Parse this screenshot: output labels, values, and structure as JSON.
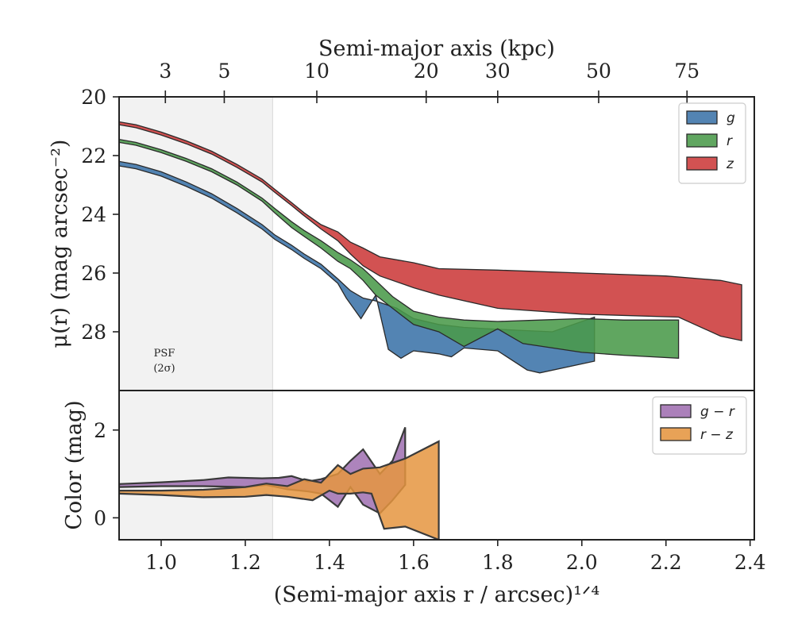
{
  "chart_data": [
    {
      "panel": "surface-brightness",
      "type": "area",
      "top_axis": {
        "label": "Semi-major axis (kpc)",
        "ticks": [
          3,
          5,
          10,
          20,
          30,
          50,
          75
        ],
        "tick_labels": [
          "3",
          "5",
          "10",
          "20",
          "30",
          "50",
          "75"
        ],
        "tick_x_positions": [
          1.01,
          1.15,
          1.37,
          1.63,
          1.8,
          2.04,
          2.25
        ]
      },
      "xlim": [
        0.9,
        2.41
      ],
      "ylim": [
        30,
        20
      ],
      "y_ticks": [
        20,
        22,
        24,
        26,
        28
      ],
      "y_tick_labels": [
        "20",
        "22",
        "24",
        "26",
        "28"
      ],
      "ylabel": "μ(r) (mag arcsec⁻²)",
      "psf_band": {
        "x_range": [
          0.9,
          1.265
        ],
        "label_line1": "PSF",
        "label_line2": "(2σ)"
      },
      "legend": {
        "position": "upper right",
        "entries": [
          "g",
          "r",
          "z"
        ]
      },
      "series": [
        {
          "name": "g",
          "color": "#3b73a8",
          "upper": [
            [
              0.9,
              22.2
            ],
            [
              0.94,
              22.3
            ],
            [
              1.0,
              22.55
            ],
            [
              1.06,
              22.9
            ],
            [
              1.12,
              23.3
            ],
            [
              1.18,
              23.8
            ],
            [
              1.24,
              24.35
            ],
            [
              1.27,
              24.7
            ],
            [
              1.31,
              25.05
            ],
            [
              1.34,
              25.35
            ],
            [
              1.38,
              25.7
            ],
            [
              1.42,
              26.2
            ],
            [
              1.45,
              26.6
            ],
            [
              1.48,
              26.85
            ],
            [
              1.51,
              26.95
            ],
            [
              1.56,
              27.2
            ],
            [
              1.6,
              27.55
            ],
            [
              1.66,
              27.75
            ],
            [
              1.72,
              27.85
            ],
            [
              1.78,
              27.9
            ],
            [
              1.85,
              27.95
            ],
            [
              1.93,
              28.0
            ],
            [
              2.03,
              27.5
            ]
          ],
          "lower": [
            [
              0.9,
              22.35
            ],
            [
              0.94,
              22.45
            ],
            [
              1.0,
              22.7
            ],
            [
              1.06,
              23.05
            ],
            [
              1.12,
              23.45
            ],
            [
              1.18,
              23.95
            ],
            [
              1.24,
              24.5
            ],
            [
              1.27,
              24.85
            ],
            [
              1.31,
              25.2
            ],
            [
              1.34,
              25.5
            ],
            [
              1.38,
              25.85
            ],
            [
              1.42,
              26.35
            ],
            [
              1.44,
              26.85
            ],
            [
              1.475,
              27.55
            ],
            [
              1.51,
              26.75
            ],
            [
              1.54,
              28.6
            ],
            [
              1.57,
              28.9
            ],
            [
              1.6,
              28.65
            ],
            [
              1.66,
              28.75
            ],
            [
              1.69,
              28.85
            ],
            [
              1.72,
              28.55
            ],
            [
              1.8,
              28.65
            ],
            [
              1.87,
              29.3
            ],
            [
              1.9,
              29.4
            ],
            [
              2.03,
              29.0
            ]
          ]
        },
        {
          "name": "r",
          "color": "#4a9a4a",
          "upper": [
            [
              0.9,
              21.45
            ],
            [
              0.94,
              21.55
            ],
            [
              1.0,
              21.8
            ],
            [
              1.06,
              22.1
            ],
            [
              1.12,
              22.45
            ],
            [
              1.18,
              22.9
            ],
            [
              1.24,
              23.45
            ],
            [
              1.27,
              23.8
            ],
            [
              1.31,
              24.25
            ],
            [
              1.34,
              24.55
            ],
            [
              1.38,
              24.9
            ],
            [
              1.42,
              25.3
            ],
            [
              1.45,
              25.55
            ],
            [
              1.48,
              25.85
            ],
            [
              1.51,
              26.25
            ],
            [
              1.55,
              26.8
            ],
            [
              1.6,
              27.3
            ],
            [
              1.66,
              27.5
            ],
            [
              1.72,
              27.6
            ],
            [
              1.8,
              27.65
            ],
            [
              1.9,
              27.6
            ],
            [
              2.0,
              27.55
            ],
            [
              2.1,
              27.6
            ],
            [
              2.23,
              27.6
            ]
          ],
          "lower": [
            [
              0.9,
              21.55
            ],
            [
              0.94,
              21.65
            ],
            [
              1.0,
              21.9
            ],
            [
              1.06,
              22.2
            ],
            [
              1.12,
              22.55
            ],
            [
              1.18,
              23.0
            ],
            [
              1.24,
              23.55
            ],
            [
              1.27,
              23.95
            ],
            [
              1.31,
              24.45
            ],
            [
              1.34,
              24.75
            ],
            [
              1.38,
              25.15
            ],
            [
              1.42,
              25.6
            ],
            [
              1.45,
              25.85
            ],
            [
              1.48,
              26.25
            ],
            [
              1.51,
              26.75
            ],
            [
              1.55,
              27.2
            ],
            [
              1.6,
              27.75
            ],
            [
              1.66,
              28.0
            ],
            [
              1.72,
              28.5
            ],
            [
              1.8,
              27.9
            ],
            [
              1.86,
              28.4
            ],
            [
              2.0,
              28.7
            ],
            [
              2.1,
              28.8
            ],
            [
              2.23,
              28.9
            ]
          ]
        },
        {
          "name": "z",
          "color": "#cc3a3a",
          "upper": [
            [
              0.9,
              20.85
            ],
            [
              0.94,
              20.95
            ],
            [
              1.0,
              21.2
            ],
            [
              1.06,
              21.5
            ],
            [
              1.12,
              21.85
            ],
            [
              1.18,
              22.3
            ],
            [
              1.24,
              22.8
            ],
            [
              1.27,
              23.15
            ],
            [
              1.31,
              23.6
            ],
            [
              1.34,
              23.95
            ],
            [
              1.38,
              24.35
            ],
            [
              1.42,
              24.6
            ],
            [
              1.45,
              24.95
            ],
            [
              1.48,
              25.15
            ],
            [
              1.52,
              25.45
            ],
            [
              1.6,
              25.65
            ],
            [
              1.66,
              25.85
            ],
            [
              1.8,
              25.9
            ],
            [
              2.0,
              26.0
            ],
            [
              2.2,
              26.1
            ],
            [
              2.33,
              26.25
            ],
            [
              2.38,
              26.4
            ]
          ],
          "lower": [
            [
              0.9,
              20.95
            ],
            [
              0.94,
              21.05
            ],
            [
              1.0,
              21.3
            ],
            [
              1.06,
              21.6
            ],
            [
              1.12,
              21.95
            ],
            [
              1.18,
              22.4
            ],
            [
              1.24,
              22.9
            ],
            [
              1.27,
              23.25
            ],
            [
              1.31,
              23.7
            ],
            [
              1.34,
              24.05
            ],
            [
              1.38,
              24.5
            ],
            [
              1.42,
              24.9
            ],
            [
              1.45,
              25.35
            ],
            [
              1.48,
              25.75
            ],
            [
              1.52,
              26.1
            ],
            [
              1.6,
              26.5
            ],
            [
              1.66,
              26.75
            ],
            [
              1.8,
              27.2
            ],
            [
              2.0,
              27.4
            ],
            [
              2.23,
              27.5
            ],
            [
              2.33,
              28.15
            ],
            [
              2.38,
              28.3
            ]
          ]
        }
      ]
    },
    {
      "panel": "color",
      "type": "area",
      "xlim": [
        0.9,
        2.41
      ],
      "ylim": [
        -0.5,
        2.9
      ],
      "y_ticks": [
        0,
        2
      ],
      "y_tick_labels": [
        "0",
        "2"
      ],
      "ylabel": "Color (mag)",
      "xlabel": "(Semi-major axis r / arcsec)¹ᐟ⁴",
      "x_ticks": [
        1.0,
        1.2,
        1.4,
        1.6,
        1.8,
        2.0,
        2.2,
        2.4
      ],
      "x_tick_labels": [
        "1.0",
        "1.2",
        "1.4",
        "1.6",
        "1.8",
        "2.0",
        "2.2",
        "2.4"
      ],
      "psf_band": {
        "x_range": [
          0.9,
          1.265
        ]
      },
      "legend": {
        "position": "upper right",
        "entries": [
          "g − r",
          "r − z"
        ]
      },
      "series": [
        {
          "name": "g − r",
          "color": "#9f6eb0",
          "upper": [
            [
              0.9,
              0.77
            ],
            [
              1.0,
              0.81
            ],
            [
              1.1,
              0.86
            ],
            [
              1.16,
              0.92
            ],
            [
              1.24,
              0.9
            ],
            [
              1.28,
              0.91
            ],
            [
              1.31,
              0.95
            ],
            [
              1.35,
              0.83
            ],
            [
              1.38,
              0.88
            ],
            [
              1.42,
              1.0
            ],
            [
              1.45,
              1.3
            ],
            [
              1.48,
              1.56
            ],
            [
              1.52,
              1.0
            ],
            [
              1.55,
              1.3
            ],
            [
              1.58,
              2.06
            ]
          ],
          "lower": [
            [
              0.9,
              0.7
            ],
            [
              1.0,
              0.72
            ],
            [
              1.1,
              0.72
            ],
            [
              1.2,
              0.7
            ],
            [
              1.25,
              0.75
            ],
            [
              1.3,
              0.65
            ],
            [
              1.35,
              0.6
            ],
            [
              1.38,
              0.55
            ],
            [
              1.42,
              0.25
            ],
            [
              1.45,
              0.7
            ],
            [
              1.48,
              0.3
            ],
            [
              1.52,
              0.1
            ],
            [
              1.55,
              0.4
            ],
            [
              1.58,
              0.75
            ]
          ]
        },
        {
          "name": "r − z",
          "color": "#e59540",
          "upper": [
            [
              0.9,
              0.62
            ],
            [
              1.0,
              0.62
            ],
            [
              1.1,
              0.64
            ],
            [
              1.2,
              0.7
            ],
            [
              1.25,
              0.78
            ],
            [
              1.3,
              0.72
            ],
            [
              1.34,
              0.88
            ],
            [
              1.38,
              0.8
            ],
            [
              1.42,
              1.2
            ],
            [
              1.45,
              1.0
            ],
            [
              1.48,
              1.12
            ],
            [
              1.52,
              1.15
            ],
            [
              1.55,
              1.25
            ],
            [
              1.58,
              1.35
            ],
            [
              1.66,
              1.74
            ]
          ],
          "lower": [
            [
              0.9,
              0.55
            ],
            [
              1.0,
              0.52
            ],
            [
              1.1,
              0.47
            ],
            [
              1.2,
              0.48
            ],
            [
              1.25,
              0.52
            ],
            [
              1.3,
              0.48
            ],
            [
              1.36,
              0.4
            ],
            [
              1.4,
              0.62
            ],
            [
              1.42,
              0.55
            ],
            [
              1.45,
              0.55
            ],
            [
              1.48,
              0.58
            ],
            [
              1.5,
              0.55
            ],
            [
              1.53,
              -0.25
            ],
            [
              1.58,
              -0.2
            ],
            [
              1.66,
              -0.5
            ]
          ]
        }
      ]
    }
  ]
}
